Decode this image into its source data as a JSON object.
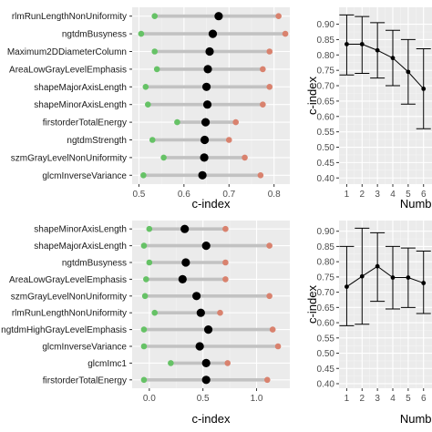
{
  "colors": {
    "panel_bg": "#ebebeb",
    "grid_major": "#ffffff",
    "grid_minor": "#f4f4f4",
    "segment": "#c2c2c2",
    "low_point": "#66c266",
    "mean_point": "#000000",
    "high_point": "#d9826e",
    "line": "#000000"
  },
  "chart_data": [
    {
      "id": "top-left",
      "type": "dot-range",
      "categories": [
        "rlmRunLengthNonUniformity",
        "ngtdmBusyness",
        "Maximum2DDiameterColumn",
        "AreaLowGrayLevelEmphasis",
        "shapeMajorAxisLength",
        "shapeMinorAxisLength",
        "firstorderTotalEnergy",
        "ngtdmStrength",
        "szmGrayLevelNonUniformity",
        "glcmInverseVariance"
      ],
      "low": [
        0.535,
        0.505,
        0.535,
        0.54,
        0.515,
        0.52,
        0.585,
        0.53,
        0.555,
        0.51
      ],
      "mean": [
        0.677,
        0.664,
        0.657,
        0.653,
        0.65,
        0.652,
        0.648,
        0.646,
        0.645,
        0.641
      ],
      "high": [
        0.81,
        0.825,
        0.79,
        0.775,
        0.79,
        0.775,
        0.715,
        0.7,
        0.735,
        0.77
      ],
      "xlabel": "c-index",
      "xlim": [
        0.485,
        0.835
      ],
      "xticks": [
        0.5,
        0.6,
        0.7,
        0.8
      ],
      "xtick_labels": [
        "0.5",
        "0.6",
        "0.7",
        "0.8"
      ]
    },
    {
      "id": "top-right",
      "type": "line-errorbar",
      "x": [
        1,
        2,
        3,
        4,
        5,
        6
      ],
      "y": [
        0.835,
        0.835,
        0.815,
        0.79,
        0.745,
        0.69
      ],
      "ymin": [
        0.735,
        0.74,
        0.725,
        0.7,
        0.64,
        0.56
      ],
      "ymax": [
        0.93,
        0.925,
        0.905,
        0.88,
        0.85,
        0.82
      ],
      "xlabel": "Number of fe",
      "ylabel": "c-index",
      "xlim": [
        0.5,
        6.55
      ],
      "ylim": [
        0.38,
        0.955
      ],
      "yticks": [
        0.4,
        0.45,
        0.5,
        0.55,
        0.6,
        0.65,
        0.7,
        0.75,
        0.8,
        0.85,
        0.9
      ],
      "ytick_labels": [
        "0.40",
        "0.45",
        "0.50",
        "0.55",
        "0.60",
        "0.65",
        "0.70",
        "0.75",
        "0.80",
        "0.85",
        "0.90"
      ],
      "xticks": [
        1,
        2,
        3,
        4,
        5,
        6
      ],
      "xtick_labels": [
        "1",
        "2",
        "3",
        "4",
        "5",
        "6"
      ]
    },
    {
      "id": "bottom-left",
      "type": "dot-range",
      "categories": [
        "shapeMinorAxisLength",
        "shapeMajorAxisLength",
        "ngtdmBusyness",
        "AreaLowGrayLevelEmphasis",
        "szmGrayLevelNonUniformity",
        "rlmRunLengthNonUniformity",
        "ngtdmHighGrayLevelEmphasis",
        "glcmInverseVariance",
        "glcmImc1",
        "firstorderTotalEnergy"
      ],
      "low": [
        0.0,
        -0.05,
        0.0,
        -0.03,
        -0.04,
        0.05,
        -0.05,
        -0.05,
        0.2,
        -0.05
      ],
      "mean": [
        0.33,
        0.53,
        0.34,
        0.31,
        0.44,
        0.48,
        0.55,
        0.47,
        0.53,
        0.53
      ],
      "high": [
        0.71,
        1.12,
        0.71,
        0.71,
        1.12,
        0.66,
        1.15,
        1.2,
        0.73,
        1.1
      ],
      "xlabel": "c-index",
      "xlim": [
        -0.16,
        1.31
      ],
      "xticks": [
        0.0,
        0.5,
        1.0
      ],
      "xtick_labels": [
        "0.0",
        "0.5",
        "1.0"
      ]
    },
    {
      "id": "bottom-right",
      "type": "line-errorbar",
      "x": [
        1,
        2,
        3,
        4,
        5,
        6
      ],
      "y": [
        0.718,
        0.752,
        0.785,
        0.748,
        0.748,
        0.73
      ],
      "ymin": [
        0.59,
        0.595,
        0.67,
        0.645,
        0.65,
        0.63
      ],
      "ymax": [
        0.85,
        0.91,
        0.895,
        0.85,
        0.845,
        0.835
      ],
      "xlabel": "Number of fe",
      "ylabel": "c-index",
      "xlim": [
        0.5,
        6.55
      ],
      "ylim": [
        0.385,
        0.935
      ],
      "yticks": [
        0.4,
        0.45,
        0.5,
        0.55,
        0.6,
        0.65,
        0.7,
        0.75,
        0.8,
        0.85,
        0.9
      ],
      "ytick_labels": [
        "0.40",
        "0.45",
        "0.50",
        "0.55",
        "0.60",
        "0.65",
        "0.70",
        "0.75",
        "0.80",
        "0.85",
        "0.90"
      ],
      "xticks": [
        1,
        2,
        3,
        4,
        5,
        6
      ],
      "xtick_labels": [
        "1",
        "2",
        "3",
        "4",
        "5",
        "6"
      ]
    }
  ]
}
